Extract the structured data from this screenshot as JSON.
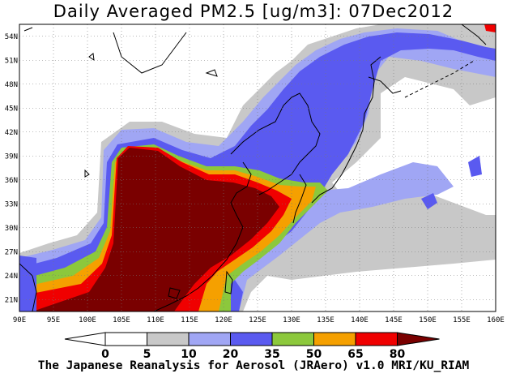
{
  "title": "Daily Averaged PM2.5 [ug/m3]: 07Dec2012",
  "credit": "The Japanese Reanalysis for Aerosol (JRAero) v1.0 MRI/KU_RIAM",
  "map": {
    "lon_range": [
      90,
      160
    ],
    "lat_range": [
      19.5,
      55.5
    ],
    "lon_ticks": [
      "90E",
      "95E",
      "100E",
      "105E",
      "110E",
      "115E",
      "120E",
      "125E",
      "130E",
      "135E",
      "140E",
      "145E",
      "150E",
      "155E",
      "160E"
    ],
    "lat_ticks": [
      "54N",
      "51N",
      "48N",
      "45N",
      "42N",
      "39N",
      "36N",
      "33N",
      "30N",
      "27N",
      "24N",
      "21N"
    ],
    "grid": true
  },
  "colorbar": {
    "levels": [
      "0",
      "5",
      "10",
      "20",
      "35",
      "50",
      "65",
      "80"
    ],
    "colors": [
      "#ffffff",
      "#ffffff",
      "#c8c8c8",
      "#a0a6f4",
      "#5a5af0",
      "#8cc83c",
      "#f5a000",
      "#f00000",
      "#7a0000"
    ]
  }
}
